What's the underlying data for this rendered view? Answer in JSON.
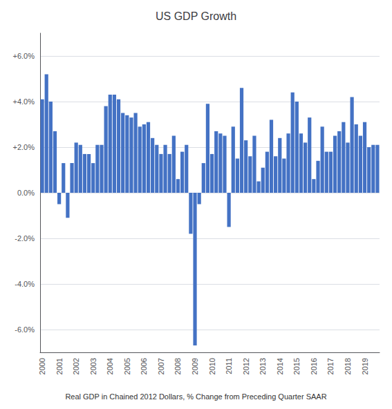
{
  "chart_data": {
    "type": "bar",
    "title": "US GDP Growth",
    "subtitle": "Real GDP in Chained 2012 Dollars, % Change from Preceding Quarter SAAR",
    "categories": [
      "2000",
      null,
      null,
      null,
      "2001",
      null,
      null,
      null,
      "2002",
      null,
      null,
      null,
      "2003",
      null,
      null,
      null,
      "2004",
      null,
      null,
      null,
      "2005",
      null,
      null,
      null,
      "2006",
      null,
      null,
      null,
      "2007",
      null,
      null,
      null,
      "2008",
      null,
      null,
      null,
      "2009",
      null,
      null,
      null,
      "2010",
      null,
      null,
      null,
      "2011",
      null,
      null,
      null,
      "2012",
      null,
      null,
      null,
      "2013",
      null,
      null,
      null,
      "2014",
      null,
      null,
      null,
      "2015",
      null,
      null,
      null,
      "2016",
      null,
      null,
      null,
      "2017",
      null,
      null,
      null,
      "2018",
      null,
      null,
      null,
      "2019",
      null,
      null,
      null
    ],
    "values": [
      4.1,
      5.2,
      4.0,
      2.7,
      -0.5,
      1.3,
      -1.1,
      1.3,
      2.2,
      2.1,
      1.7,
      1.7,
      1.3,
      2.1,
      2.1,
      3.8,
      4.3,
      4.3,
      4.1,
      3.5,
      3.4,
      3.3,
      3.5,
      2.9,
      3.0,
      3.1,
      2.4,
      2.1,
      1.7,
      2.1,
      1.7,
      2.5,
      0.6,
      1.8,
      2.1,
      -1.8,
      -6.7,
      -0.5,
      1.3,
      3.9,
      1.7,
      2.7,
      2.6,
      2.5,
      -1.5,
      2.9,
      1.5,
      4.6,
      2.3,
      1.6,
      2.5,
      0.5,
      1.1,
      1.8,
      3.2,
      1.6,
      2.4,
      1.5,
      2.6,
      4.4,
      4.0,
      2.6,
      2.2,
      3.3,
      0.6,
      1.4,
      2.9,
      1.8,
      1.8,
      2.5,
      2.7,
      3.1,
      2.2,
      4.2,
      3.0,
      2.5,
      3.1,
      2.0,
      2.1,
      2.1
    ],
    "color": "#4472C4",
    "ylim": [
      -7.0,
      7.0
    ],
    "yticks": [
      {
        "value": -6.0,
        "label": "-6.0%"
      },
      {
        "value": -4.0,
        "label": "-4.0%"
      },
      {
        "value": -2.0,
        "label": "-2.0%"
      },
      {
        "value": 0.0,
        "label": "0.0%"
      },
      {
        "value": 2.0,
        "label": "+2.0%"
      },
      {
        "value": 4.0,
        "label": "+4.0%"
      },
      {
        "value": 6.0,
        "label": "+6.0%"
      }
    ],
    "grid": true
  }
}
